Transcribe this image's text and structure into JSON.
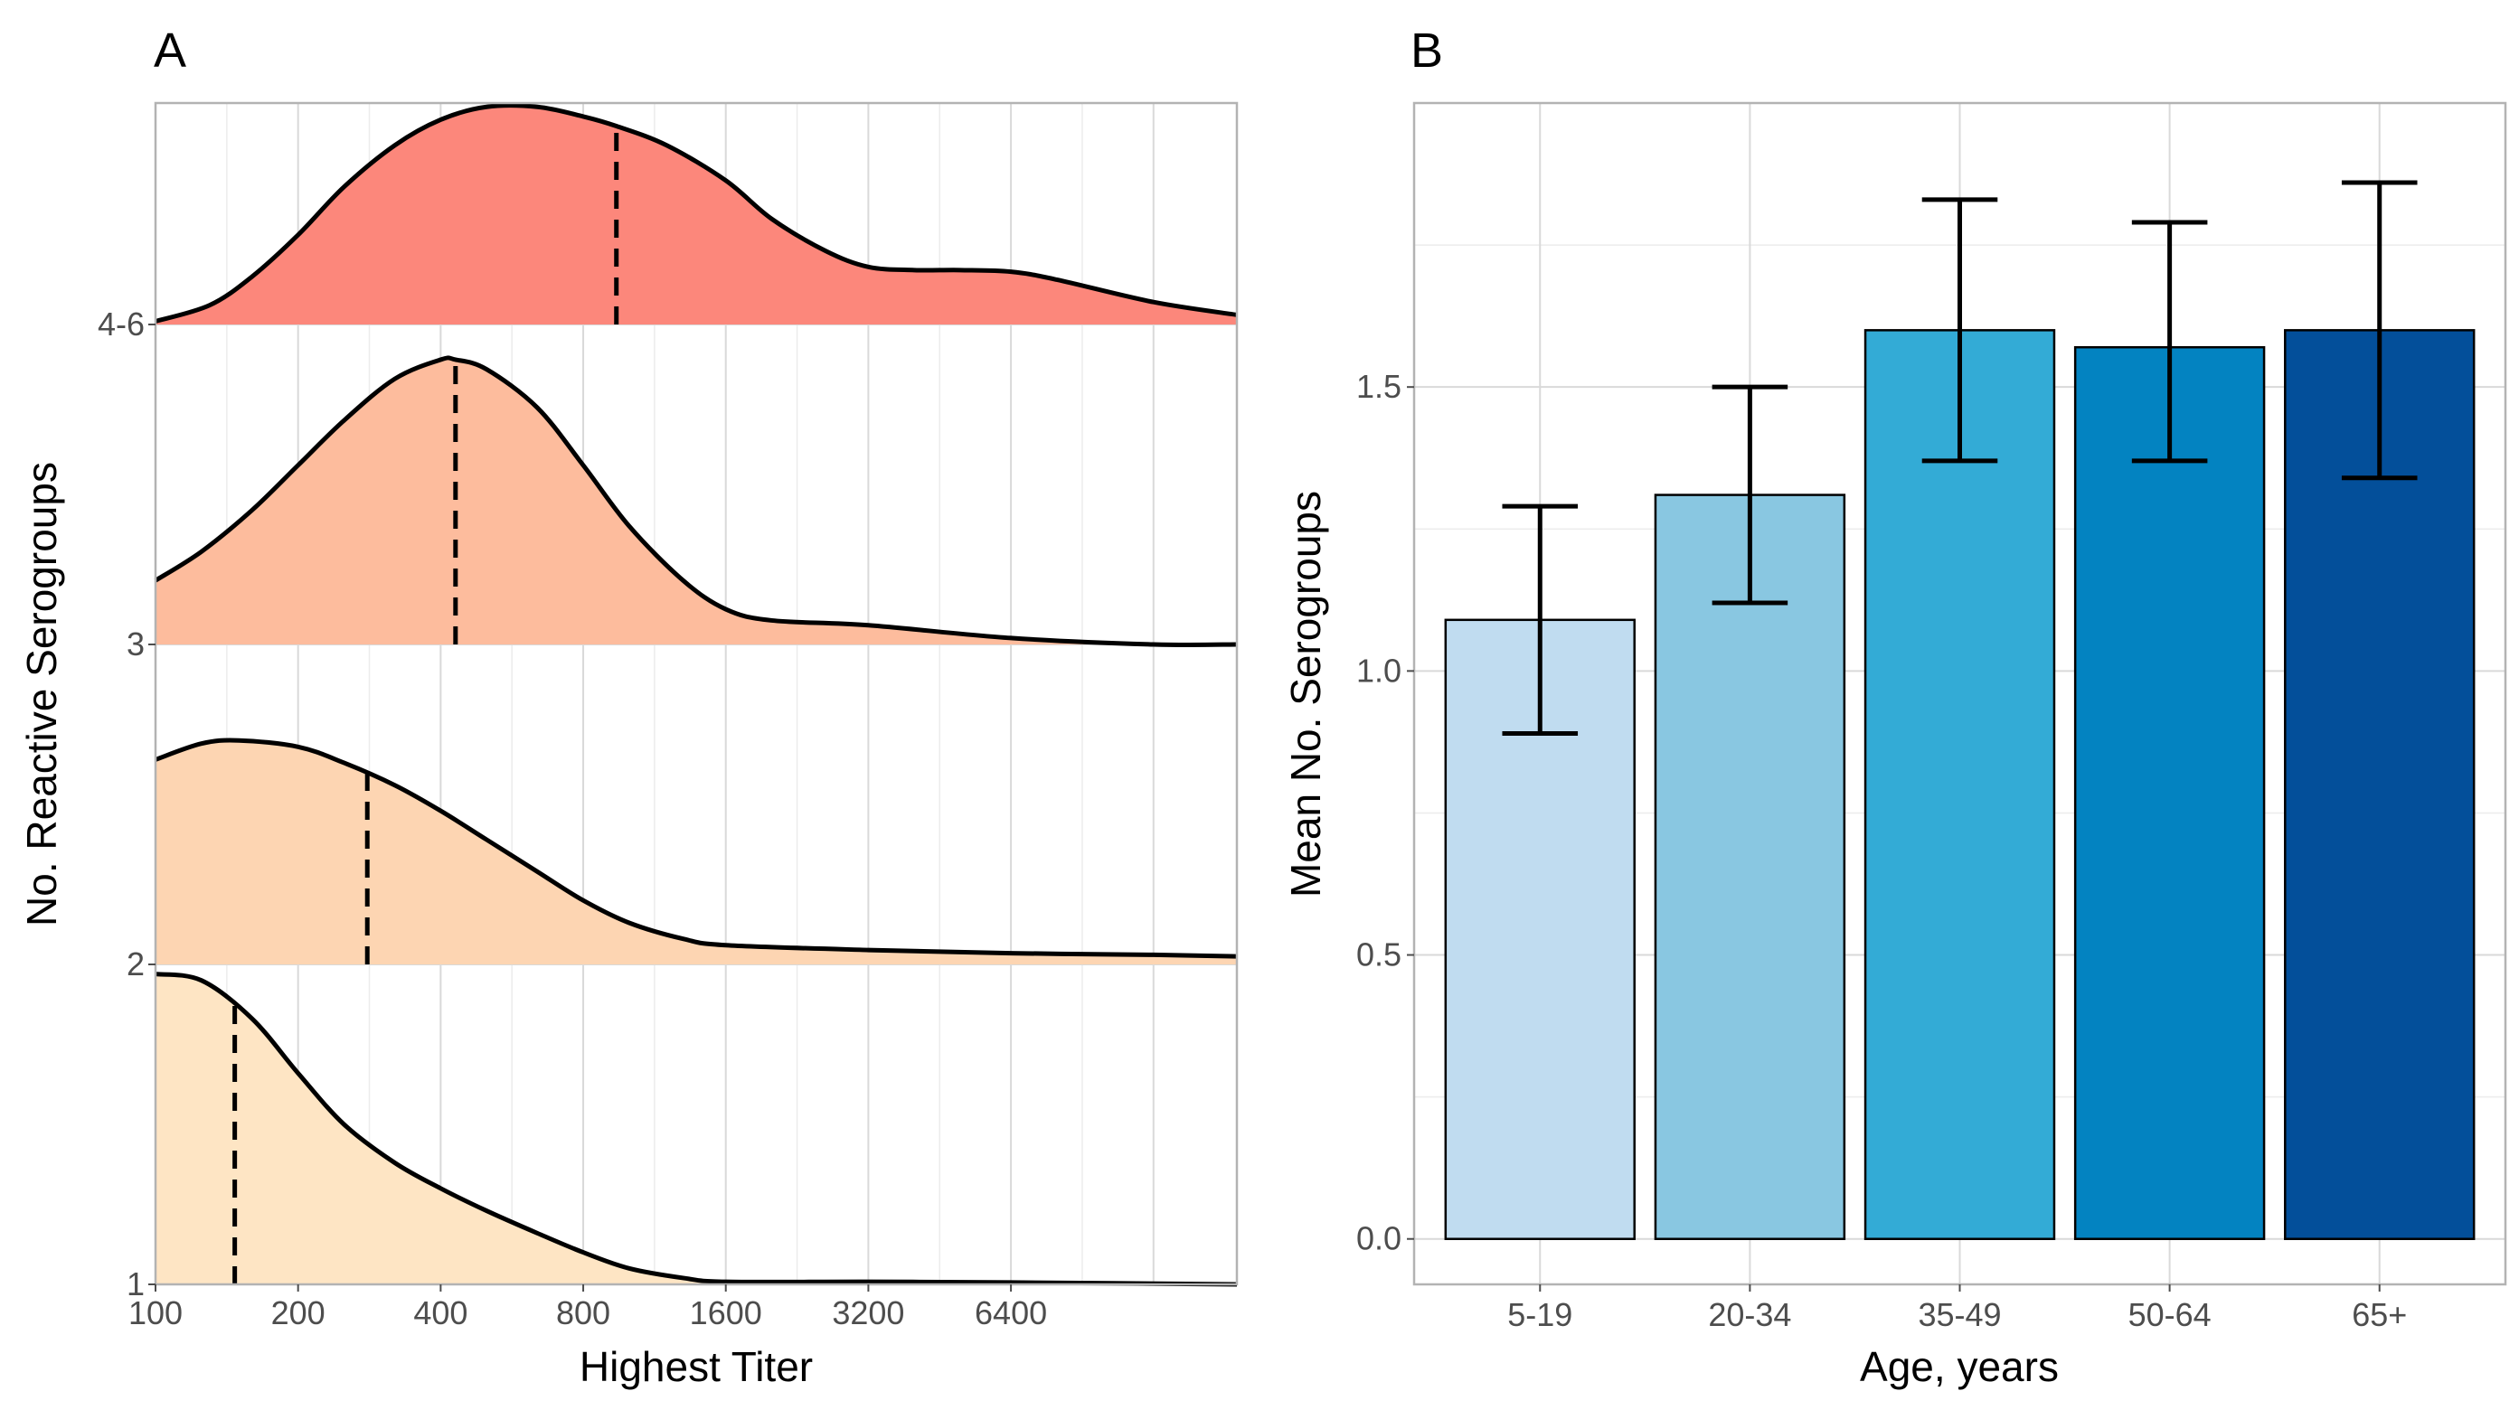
{
  "chart_data": [
    {
      "panel": "A",
      "type": "ridgeline",
      "xlabel": "Highest Titer",
      "ylabel": "No. Reactive Serogroups",
      "x_scale": "log2",
      "x_range": [
        100,
        19200
      ],
      "x_ticks": [
        100,
        200,
        400,
        800,
        1600,
        3200,
        6400
      ],
      "x_tick_labels": [
        "100",
        "200",
        "400",
        "800",
        "1600",
        "3200",
        "6400"
      ],
      "median_line_style": "dashed",
      "series": [
        {
          "name": "1",
          "color": "#FEE5C4",
          "median": 147,
          "density": [
            [
              100,
              0.97
            ],
            [
              125,
              0.95
            ],
            [
              160,
              0.83
            ],
            [
              200,
              0.66
            ],
            [
              250,
              0.5
            ],
            [
              320,
              0.38
            ],
            [
              400,
              0.3
            ],
            [
              500,
              0.23
            ],
            [
              640,
              0.16
            ],
            [
              800,
              0.1
            ],
            [
              1000,
              0.05
            ],
            [
              1300,
              0.02
            ],
            [
              1600,
              0.008
            ],
            [
              3200,
              0.008
            ],
            [
              6400,
              0.006
            ],
            [
              19200,
              0.0
            ]
          ]
        },
        {
          "name": "2",
          "color": "#FDD5B2",
          "median": 280,
          "density": [
            [
              100,
              0.64
            ],
            [
              125,
              0.69
            ],
            [
              150,
              0.7
            ],
            [
              200,
              0.68
            ],
            [
              250,
              0.63
            ],
            [
              320,
              0.56
            ],
            [
              400,
              0.48
            ],
            [
              500,
              0.39
            ],
            [
              640,
              0.29
            ],
            [
              800,
              0.2
            ],
            [
              1000,
              0.13
            ],
            [
              1300,
              0.08
            ],
            [
              1600,
              0.06
            ],
            [
              3200,
              0.045
            ],
            [
              6400,
              0.035
            ],
            [
              12800,
              0.03
            ],
            [
              19200,
              0.025
            ]
          ]
        },
        {
          "name": "3",
          "color": "#FDBC9D",
          "median": 430,
          "density": [
            [
              100,
              0.2
            ],
            [
              125,
              0.29
            ],
            [
              160,
              0.42
            ],
            [
              200,
              0.56
            ],
            [
              250,
              0.7
            ],
            [
              320,
              0.83
            ],
            [
              400,
              0.89
            ],
            [
              430,
              0.89
            ],
            [
              500,
              0.86
            ],
            [
              640,
              0.74
            ],
            [
              800,
              0.56
            ],
            [
              1000,
              0.37
            ],
            [
              1300,
              0.2
            ],
            [
              1600,
              0.11
            ],
            [
              2000,
              0.075
            ],
            [
              3200,
              0.06
            ],
            [
              6400,
              0.02
            ],
            [
              12800,
              0.0
            ],
            [
              19200,
              0.0
            ]
          ]
        },
        {
          "name": "4-6",
          "color": "#FC877B",
          "median": 940,
          "density": [
            [
              100,
              0.01
            ],
            [
              130,
              0.06
            ],
            [
              160,
              0.15
            ],
            [
              200,
              0.28
            ],
            [
              250,
              0.43
            ],
            [
              320,
              0.56
            ],
            [
              400,
              0.64
            ],
            [
              500,
              0.68
            ],
            [
              640,
              0.68
            ],
            [
              800,
              0.65
            ],
            [
              940,
              0.62
            ],
            [
              1200,
              0.56
            ],
            [
              1600,
              0.45
            ],
            [
              2000,
              0.33
            ],
            [
              2600,
              0.23
            ],
            [
              3200,
              0.18
            ],
            [
              4000,
              0.17
            ],
            [
              5000,
              0.17
            ],
            [
              6400,
              0.165
            ],
            [
              8000,
              0.14
            ],
            [
              12800,
              0.07
            ],
            [
              19200,
              0.03
            ]
          ]
        }
      ]
    },
    {
      "panel": "B",
      "type": "bar",
      "xlabel": "Age, years",
      "ylabel": "Mean No. Serogroups",
      "ylim": [
        -0.08,
        2.0
      ],
      "y_ticks": [
        0.0,
        0.5,
        1.0,
        1.5
      ],
      "y_tick_labels": [
        "0.0",
        "0.5",
        "1.0",
        "1.5"
      ],
      "categories": [
        "5-19",
        "20-34",
        "35-49",
        "50-64",
        "65+"
      ],
      "values": [
        1.09,
        1.31,
        1.6,
        1.57,
        1.6
      ],
      "err_low": [
        0.89,
        1.12,
        1.37,
        1.37,
        1.34
      ],
      "err_high": [
        1.29,
        1.5,
        1.83,
        1.79,
        1.86
      ],
      "colors": [
        "#C0DCF0",
        "#89C7E1",
        "#33ABD6",
        "#0383C1",
        "#034F9A"
      ]
    }
  ]
}
